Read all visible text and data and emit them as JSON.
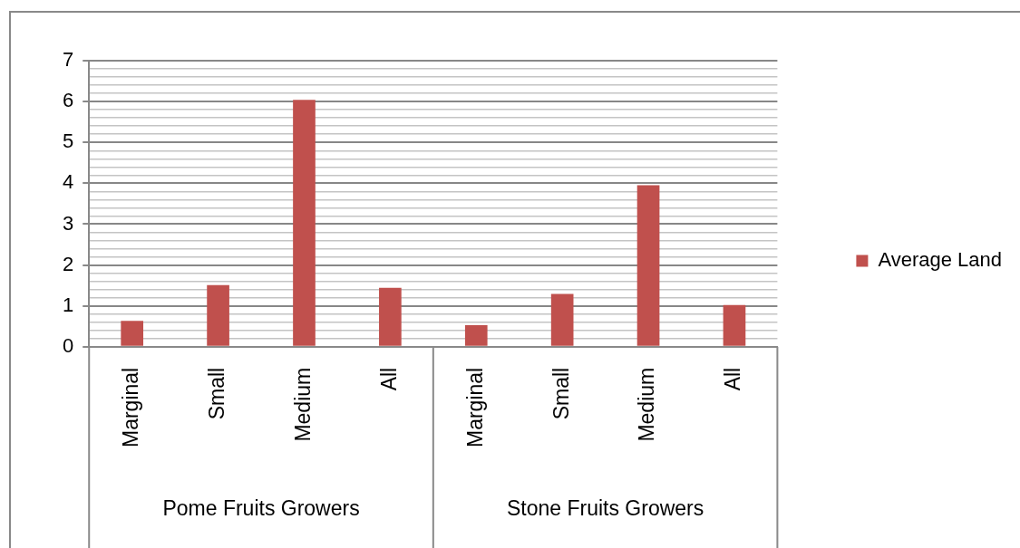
{
  "chart_data": {
    "type": "bar",
    "categories": [
      "Marginal",
      "Small",
      "Medium",
      "All",
      "Marginal",
      "Small",
      "Medium",
      "All"
    ],
    "series": [
      {
        "name": "Average Land",
        "color": "#c0504d",
        "values": [
          0.63,
          1.51,
          6.04,
          1.44,
          0.53,
          1.29,
          3.95,
          1.02
        ]
      }
    ],
    "ylim": [
      0,
      7
    ],
    "yticks": [
      0,
      {
        "value": 0.2,
        "label": null
      },
      {
        "value": 0.4,
        "label": null
      },
      {
        "value": 0.6,
        "label": null
      },
      {
        "value": 0.8,
        "label": null
      },
      1,
      {
        "value": 1.2,
        "label": null
      },
      {
        "value": 1.4,
        "label": null
      },
      {
        "value": 1.6,
        "label": null
      },
      {
        "value": 1.8,
        "label": null
      },
      2,
      {
        "value": 2.2,
        "label": null
      },
      {
        "value": 2.4,
        "label": null
      },
      {
        "value": 2.6,
        "label": null
      },
      {
        "value": 2.8,
        "label": null
      },
      3,
      {
        "value": 3.2,
        "label": null
      },
      {
        "value": 3.4,
        "label": null
      },
      {
        "value": 3.6,
        "label": null
      },
      {
        "value": 3.8,
        "label": null
      },
      4,
      {
        "value": 4.2,
        "label": null
      },
      {
        "value": 4.4,
        "label": null
      },
      {
        "value": 4.6,
        "label": null
      },
      {
        "value": 4.8,
        "label": null
      },
      5,
      {
        "value": 5.2,
        "label": null
      },
      {
        "value": 5.4,
        "label": null
      },
      {
        "value": 5.6,
        "label": null
      },
      {
        "value": 5.8,
        "label": null
      },
      6,
      {
        "value": 6.2,
        "label": null
      },
      {
        "value": 6.4,
        "label": null
      },
      {
        "value": 6.6,
        "label": null
      },
      {
        "value": 6.8,
        "label": null
      },
      7
    ],
    "grid": "y",
    "legend": "right",
    "annotations": [
      "Pome Fruits Growers",
      "Stone Fruits Growers"
    ]
  }
}
